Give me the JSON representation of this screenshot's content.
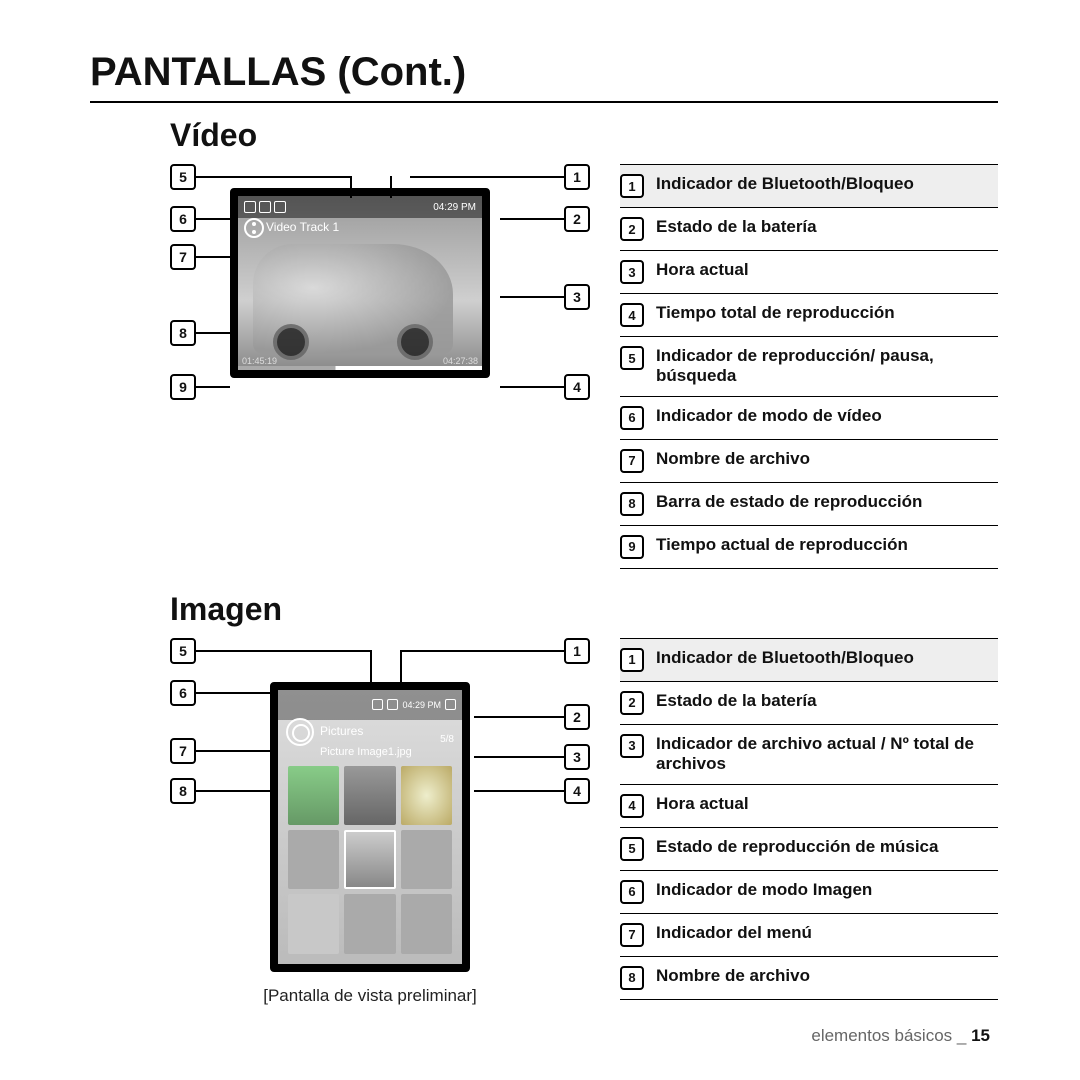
{
  "page": {
    "main_title": "PANTALLAS (Cont.)",
    "footer_section": "elementos básicos _",
    "footer_page": "15"
  },
  "video": {
    "title": "Vídeo",
    "screen": {
      "track": "Video Track 1",
      "time": "04:29 PM",
      "elapsed": "01:45:19",
      "total": "04:27:38"
    },
    "left_callouts": [
      "5",
      "6",
      "7",
      "8",
      "9"
    ],
    "right_callouts": [
      "1",
      "2",
      "3",
      "4"
    ],
    "legend": [
      {
        "n": "1",
        "t": "Indicador de Bluetooth/Bloqueo"
      },
      {
        "n": "2",
        "t": "Estado de la batería"
      },
      {
        "n": "3",
        "t": "Hora actual"
      },
      {
        "n": "4",
        "t": "Tiempo total de reproducción"
      },
      {
        "n": "5",
        "t": "Indicador de reproducción/ pausa, búsqueda"
      },
      {
        "n": "6",
        "t": "Indicador de modo de vídeo"
      },
      {
        "n": "7",
        "t": "Nombre de archivo"
      },
      {
        "n": "8",
        "t": "Barra de estado de reproducción"
      },
      {
        "n": "9",
        "t": "Tiempo actual de reproducción"
      }
    ]
  },
  "image": {
    "title": "Imagen",
    "screen": {
      "mode": "Pictures",
      "file": "Picture Image1.jpg",
      "count": "5/8",
      "time": "04:29 PM"
    },
    "caption": "[Pantalla de vista preliminar]",
    "left_callouts": [
      "5",
      "6",
      "7",
      "8"
    ],
    "right_callouts": [
      "1",
      "2",
      "3",
      "4"
    ],
    "legend": [
      {
        "n": "1",
        "t": "Indicador de Bluetooth/Bloqueo"
      },
      {
        "n": "2",
        "t": "Estado de la batería"
      },
      {
        "n": "3",
        "t": "Indicador de archivo actual / Nº total de archivos"
      },
      {
        "n": "4",
        "t": "Hora actual"
      },
      {
        "n": "5",
        "t": "Estado de reproducción de música"
      },
      {
        "n": "6",
        "t": "Indicador de modo Imagen"
      },
      {
        "n": "7",
        "t": "Indicador del menú"
      },
      {
        "n": "8",
        "t": "Nombre de archivo"
      }
    ]
  }
}
